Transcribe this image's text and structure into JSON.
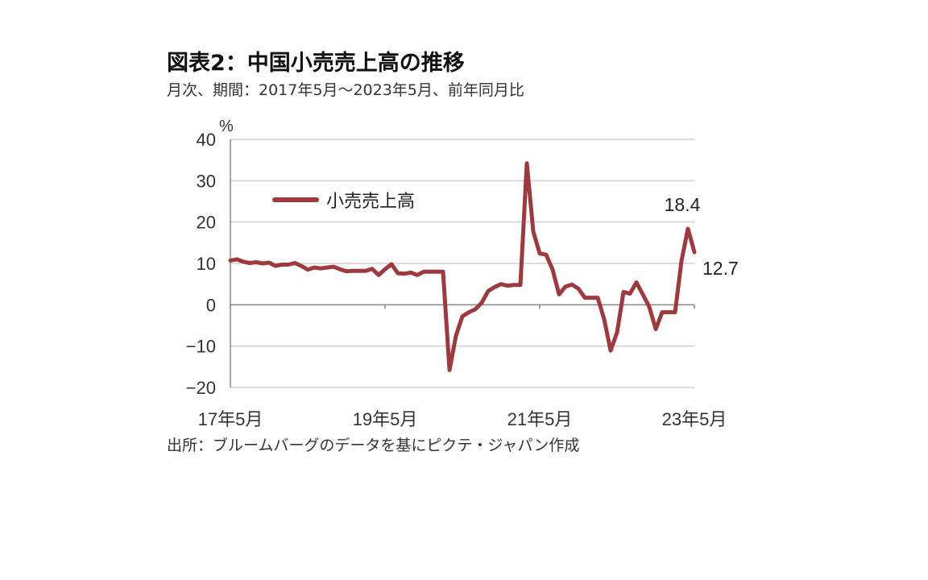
{
  "header": {
    "title": "図表2：中国小売売上高の推移",
    "subtitle": "月次、期間：2017年5月～2023年5月、前年同月比"
  },
  "footer": {
    "source": "出所：ブルームバーグのデータを基にピクテ・ジャパン作成"
  },
  "colors": {
    "series": "#A0393E",
    "grid": "#D0D0D0",
    "axis": "#888888"
  },
  "chart_data": {
    "type": "line",
    "title": "図表2：中国小売売上高の推移",
    "subtitle": "月次、期間：2017年5月～2023年5月、前年同月比",
    "ylabel": "%",
    "ylim": [
      -20,
      40
    ],
    "yticks": [
      -20,
      -10,
      0,
      10,
      20,
      30,
      40
    ],
    "xrange": [
      "2017-05",
      "2023-05"
    ],
    "xticks": [
      {
        "label": "17年5月",
        "date": "2017-05"
      },
      {
        "label": "19年5月",
        "date": "2019-05"
      },
      {
        "label": "21年5月",
        "date": "2021-05"
      },
      {
        "label": "23年5月",
        "date": "2023-05"
      }
    ],
    "grid": true,
    "legend": {
      "position": "top-left",
      "entries": [
        "小売売上高"
      ]
    },
    "series": [
      {
        "name": "小売売上高",
        "x": [
          "2017-05",
          "2017-06",
          "2017-07",
          "2017-08",
          "2017-09",
          "2017-10",
          "2017-11",
          "2017-12",
          "2018-01",
          "2018-02",
          "2018-03",
          "2018-04",
          "2018-05",
          "2018-06",
          "2018-07",
          "2018-08",
          "2018-09",
          "2018-10",
          "2018-11",
          "2018-12",
          "2019-01",
          "2019-02",
          "2019-03",
          "2019-04",
          "2019-05",
          "2019-06",
          "2019-07",
          "2019-08",
          "2019-09",
          "2019-10",
          "2019-11",
          "2019-12",
          "2020-01",
          "2020-02",
          "2020-03",
          "2020-04",
          "2020-05",
          "2020-06",
          "2020-07",
          "2020-08",
          "2020-09",
          "2020-10",
          "2020-11",
          "2020-12",
          "2021-01",
          "2021-02",
          "2021-03",
          "2021-04",
          "2021-05",
          "2021-06",
          "2021-07",
          "2021-08",
          "2021-09",
          "2021-10",
          "2021-11",
          "2021-12",
          "2022-01",
          "2022-02",
          "2022-03",
          "2022-04",
          "2022-05",
          "2022-06",
          "2022-07",
          "2022-08",
          "2022-09",
          "2022-10",
          "2022-11",
          "2022-12",
          "2023-01",
          "2023-02",
          "2023-03",
          "2023-04",
          "2023-05"
        ],
        "values": [
          10.7,
          11.0,
          10.4,
          10.1,
          10.3,
          10.0,
          10.2,
          9.4,
          9.7,
          9.7,
          10.1,
          9.4,
          8.5,
          9.0,
          8.8,
          9.0,
          9.2,
          8.6,
          8.1,
          8.2,
          8.2,
          8.2,
          8.7,
          7.2,
          8.6,
          9.8,
          7.6,
          7.5,
          7.8,
          7.2,
          8.0,
          8.0,
          8.0,
          8.0,
          -15.8,
          -7.5,
          -2.8,
          -1.8,
          -1.1,
          0.5,
          3.3,
          4.3,
          5.0,
          4.6,
          4.8,
          4.8,
          34.2,
          17.7,
          12.4,
          12.1,
          8.5,
          2.5,
          4.4,
          4.9,
          3.9,
          1.7,
          1.7,
          1.7,
          -3.5,
          -11.1,
          -6.7,
          3.1,
          2.7,
          5.4,
          2.5,
          -0.5,
          -5.9,
          -1.8,
          -1.8,
          -1.8,
          10.6,
          18.4,
          12.7
        ]
      }
    ],
    "annotations": [
      {
        "text": "18.4",
        "x": "2023-04",
        "y": 18.4
      },
      {
        "text": "12.7",
        "x": "2023-05",
        "y": 12.7
      }
    ]
  }
}
